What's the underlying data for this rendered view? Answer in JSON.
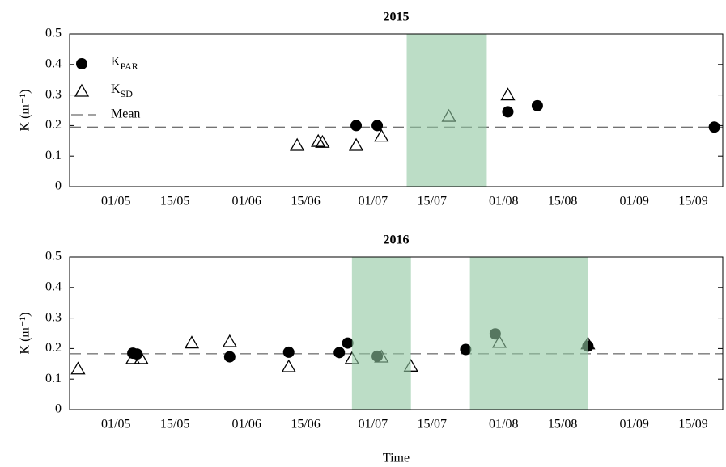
{
  "chart_data": [
    {
      "type": "scatter",
      "title": "2015",
      "y_label": "K (m⁻¹)",
      "xlim": [
        "20/04",
        "22/09"
      ],
      "xticks": [
        "01/05",
        "15/05",
        "01/06",
        "15/06",
        "01/07",
        "15/07",
        "01/08",
        "15/08",
        "01/09",
        "15/09"
      ],
      "ylim": [
        0,
        0.5
      ],
      "yticks": [
        0,
        0.1,
        0.2,
        0.3,
        0.4,
        0.5
      ],
      "legend": "upper left",
      "shaded": [
        [
          "09/07",
          "28/07"
        ]
      ],
      "shade_color": "#8fc7a0",
      "mean": {
        "name": "Mean",
        "value": 0.195
      },
      "series": [
        {
          "name": "KPAR",
          "marker": "circle",
          "color": "#000000",
          "x": [
            "27/06",
            "02/07",
            "02/08",
            "09/08",
            "20/09"
          ],
          "values": [
            0.2,
            0.2,
            0.245,
            0.265,
            0.195
          ]
        },
        {
          "name": "KSD",
          "marker": "triangle",
          "color": "#000000",
          "x": [
            "13/06",
            "18/06",
            "19/06",
            "27/06",
            "03/07",
            "19/07",
            "02/08"
          ],
          "values": [
            0.135,
            0.148,
            0.145,
            0.135,
            0.165,
            0.23,
            0.3
          ]
        }
      ]
    },
    {
      "type": "scatter",
      "title": "2016",
      "y_label": "K (m⁻¹)",
      "x_label": "Time",
      "xlim": [
        "20/04",
        "22/09"
      ],
      "xticks": [
        "01/05",
        "15/05",
        "01/06",
        "15/06",
        "01/07",
        "15/07",
        "01/08",
        "15/08",
        "01/09",
        "15/09"
      ],
      "ylim": [
        0,
        0.5
      ],
      "yticks": [
        0,
        0.1,
        0.2,
        0.3,
        0.4,
        0.5
      ],
      "shaded": [
        [
          "26/06",
          "10/07"
        ],
        [
          "24/07",
          "21/08"
        ]
      ],
      "shade_color": "#8fc7a0",
      "mean": {
        "value": 0.183
      },
      "series": [
        {
          "marker": "circle",
          "color": "#000000",
          "x": [
            "05/05",
            "06/05",
            "28/05",
            "11/06",
            "23/06",
            "25/06",
            "02/07",
            "23/07",
            "30/07",
            "21/08"
          ],
          "values": [
            0.185,
            0.182,
            0.173,
            0.188,
            0.187,
            0.218,
            0.175,
            0.197,
            0.248,
            0.208
          ]
        },
        {
          "marker": "triangle",
          "color": "#000000",
          "x": [
            "22/04",
            "05/05",
            "07/05",
            "19/05",
            "28/05",
            "11/06",
            "26/06",
            "03/07",
            "10/07",
            "31/07",
            "21/08"
          ],
          "values": [
            0.133,
            0.167,
            0.167,
            0.218,
            0.222,
            0.14,
            0.167,
            0.172,
            0.142,
            0.22,
            0.215
          ]
        }
      ]
    }
  ]
}
